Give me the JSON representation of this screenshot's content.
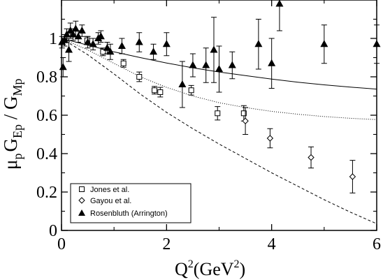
{
  "chart_data": {
    "type": "scatter",
    "title": "",
    "xlabel": {
      "base": "Q",
      "sup": "2",
      "unit_open": "(GeV",
      "unit_sup": "2",
      "unit_close": ")"
    },
    "ylabel": {
      "mu": "μ",
      "mu_sub": "p",
      "g1": "G",
      "g1_sub": "Ep",
      "slash": " / ",
      "g2": "G",
      "g2_sub": "Mp"
    },
    "xlim": [
      0,
      6
    ],
    "ylim": [
      0,
      1.2
    ],
    "xticks": [
      "0",
      "2",
      "4",
      "6"
    ],
    "yticks": [
      "0",
      "0.2",
      "0.4",
      "0.6",
      "0.8",
      "1"
    ],
    "grid": false,
    "legend_position": "bottom-left",
    "series": [
      {
        "name": "Jones et al.",
        "marker": "open-square",
        "points": [
          {
            "x": 0.49,
            "y": 0.99,
            "err": 0.02
          },
          {
            "x": 0.79,
            "y": 0.93,
            "err": 0.02
          },
          {
            "x": 1.18,
            "y": 0.87,
            "err": 0.02
          },
          {
            "x": 1.48,
            "y": 0.8,
            "err": 0.025
          },
          {
            "x": 1.77,
            "y": 0.73,
            "err": 0.02
          },
          {
            "x": 1.88,
            "y": 0.72,
            "err": 0.025
          },
          {
            "x": 2.47,
            "y": 0.73,
            "err": 0.025
          },
          {
            "x": 2.97,
            "y": 0.61,
            "err": 0.035
          },
          {
            "x": 3.47,
            "y": 0.61,
            "err": 0.04
          }
        ]
      },
      {
        "name": "Gayou et al.",
        "marker": "open-diamond",
        "points": [
          {
            "x": 3.5,
            "y": 0.57,
            "err": 0.07
          },
          {
            "x": 3.97,
            "y": 0.48,
            "err": 0.05
          },
          {
            "x": 4.75,
            "y": 0.38,
            "err": 0.055
          },
          {
            "x": 5.54,
            "y": 0.28,
            "err": 0.085
          }
        ]
      },
      {
        "name": "Rosenbluth (Arrington)",
        "marker": "filled-triangle",
        "points": [
          {
            "x": 0.01,
            "y": 0.98,
            "err": 0.03
          },
          {
            "x": 0.03,
            "y": 0.85,
            "err": 0.05
          },
          {
            "x": 0.06,
            "y": 0.99,
            "err": 0.03
          },
          {
            "x": 0.1,
            "y": 1.02,
            "err": 0.03
          },
          {
            "x": 0.14,
            "y": 0.94,
            "err": 0.06
          },
          {
            "x": 0.17,
            "y": 1.04,
            "err": 0.04
          },
          {
            "x": 0.22,
            "y": 1.02,
            "err": 0.03
          },
          {
            "x": 0.27,
            "y": 1.05,
            "err": 0.04
          },
          {
            "x": 0.32,
            "y": 1.01,
            "err": 0.03
          },
          {
            "x": 0.39,
            "y": 1.04,
            "err": 0.03
          },
          {
            "x": 0.5,
            "y": 0.98,
            "err": 0.03
          },
          {
            "x": 0.6,
            "y": 0.97,
            "err": 0.03
          },
          {
            "x": 0.7,
            "y": 1.0,
            "err": 0.03
          },
          {
            "x": 0.75,
            "y": 1.01,
            "err": 0.03
          },
          {
            "x": 0.87,
            "y": 0.95,
            "err": 0.03
          },
          {
            "x": 0.93,
            "y": 0.93,
            "err": 0.04
          },
          {
            "x": 1.15,
            "y": 0.96,
            "err": 0.04
          },
          {
            "x": 1.48,
            "y": 0.98,
            "err": 0.05
          },
          {
            "x": 1.75,
            "y": 0.93,
            "err": 0.04
          },
          {
            "x": 2.0,
            "y": 0.97,
            "err": 0.06
          },
          {
            "x": 2.3,
            "y": 0.76,
            "err": 0.12
          },
          {
            "x": 2.5,
            "y": 0.86,
            "err": 0.06
          },
          {
            "x": 2.75,
            "y": 0.86,
            "err": 0.09
          },
          {
            "x": 2.9,
            "y": 0.94,
            "err": 0.17
          },
          {
            "x": 3.0,
            "y": 0.84,
            "err": 0.12
          },
          {
            "x": 3.25,
            "y": 0.86,
            "err": 0.07
          },
          {
            "x": 3.75,
            "y": 0.97,
            "err": 0.13
          },
          {
            "x": 4.0,
            "y": 0.87,
            "err": 0.13
          },
          {
            "x": 4.15,
            "y": 1.18,
            "err": 0.14
          },
          {
            "x": 5.0,
            "y": 0.97,
            "err": 0.1
          },
          {
            "x": 6.0,
            "y": 0.97,
            "err": 0.1
          }
        ]
      }
    ],
    "curves": [
      {
        "style": "solid",
        "x": [
          0,
          0.5,
          1,
          1.5,
          2,
          2.5,
          3,
          3.5,
          4,
          4.5,
          5,
          5.5,
          6
        ],
        "y": [
          1.0,
          0.965,
          0.93,
          0.9,
          0.872,
          0.847,
          0.825,
          0.806,
          0.788,
          0.772,
          0.758,
          0.746,
          0.736
        ]
      },
      {
        "style": "dotted",
        "x": [
          0,
          0.5,
          1,
          1.5,
          2,
          2.5,
          3,
          3.5,
          4,
          4.5,
          5,
          5.5,
          6
        ],
        "y": [
          1.0,
          0.94,
          0.87,
          0.8,
          0.745,
          0.7,
          0.665,
          0.64,
          0.62,
          0.605,
          0.593,
          0.584,
          0.577
        ]
      },
      {
        "style": "dashed",
        "x": [
          0,
          0.5,
          1,
          1.5,
          2,
          2.5,
          3,
          3.5,
          4,
          4.5,
          5,
          5.5,
          6
        ],
        "y": [
          1.0,
          0.915,
          0.815,
          0.71,
          0.615,
          0.53,
          0.45,
          0.375,
          0.3,
          0.23,
          0.16,
          0.095,
          0.035
        ]
      }
    ]
  }
}
